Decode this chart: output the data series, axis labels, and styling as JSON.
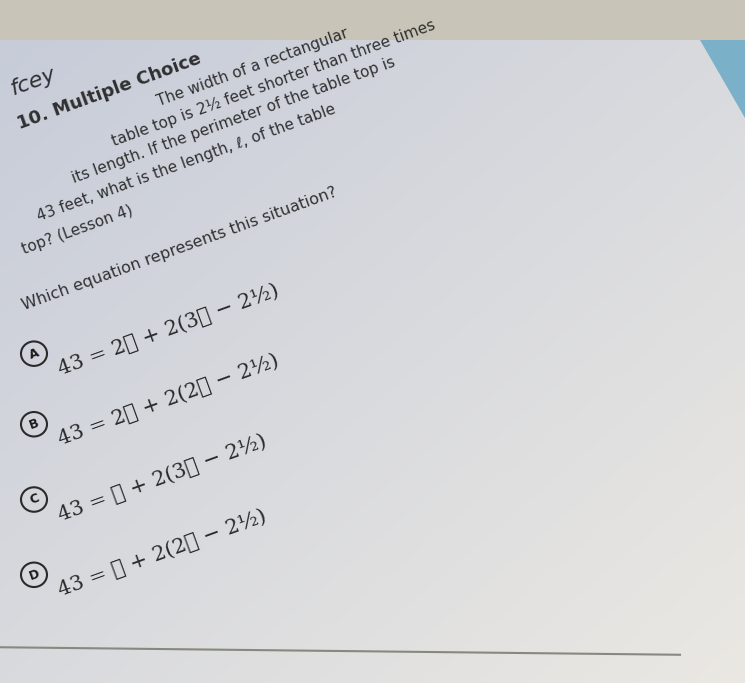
{
  "bg_top_color": "#b8c4cc",
  "bg_bottom_color": "#d4d0c8",
  "page_color_tl": "#c8ccd4",
  "page_color_tr": "#d0d8e0",
  "page_color_bl": "#e0ddd6",
  "page_color_br": "#e8e6e0",
  "text_color": "#2a2a2a",
  "header": "fcey",
  "q_num": "10. Multiple Choice",
  "q_lines": [
    "The width of a rectangular",
    "table top is 2½ feet shorter than three times",
    "its length. If the perimeter of the table top is",
    "43 feet, what is the length, ℓ, of the table",
    "top? (Lesson 4)"
  ],
  "which_line": "Which equation represents this situation?",
  "options": [
    {
      "label": "A",
      "eq": "43 = 2ℓ + 2(3ℓ − 2½)"
    },
    {
      "label": "B",
      "eq": "43 = 2ℓ + 2(2ℓ − 2½)"
    },
    {
      "label": "C",
      "eq": "43 = ℓ + 2(3ℓ − 2½)"
    },
    {
      "label": "D",
      "eq": "43 = ℓ + 2(2ℓ − 2½)"
    }
  ],
  "rotation": 20,
  "fig_w": 7.45,
  "fig_h": 6.83
}
